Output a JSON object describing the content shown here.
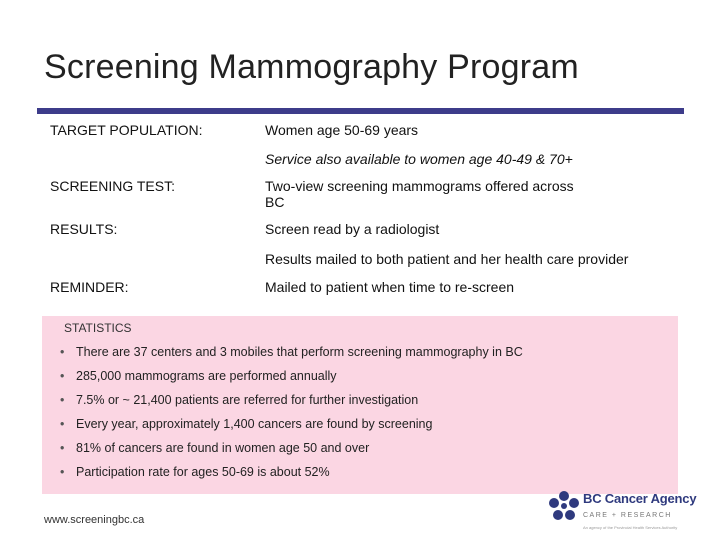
{
  "title": "Screening Mammography Program",
  "rows": {
    "target_population": {
      "label": "TARGET POPULATION:",
      "value": "Women age 50-69 years",
      "note": "Service also available to women age 40-49 & 70+"
    },
    "screening_test": {
      "label": "SCREENING TEST:",
      "value": "Two-view screening mammograms offered across BC"
    },
    "results": {
      "label": "RESULTS:",
      "value": "Screen read by a radiologist",
      "note": "Results mailed to both patient and her health care provider"
    },
    "reminder": {
      "label": "REMINDER:",
      "value": "Mailed to patient when time to re-screen"
    }
  },
  "statistics": {
    "heading": "STATISTICS",
    "bullet": "•",
    "items": [
      "There are 37 centers and 3 mobiles that perform screening mammography in BC",
      "285,000 mammograms are performed annually",
      "7.5% or ~ 21,400 patients are referred for further investigation",
      "Every year, approximately 1,400 cancers are found by screening",
      "81% of cancers are found in women age 50 and over",
      "Participation rate for ages 50-69 is about 52%"
    ]
  },
  "footer": {
    "url": "www.screeningbc.ca",
    "logo_name": "BC Cancer Agency",
    "logo_sub": "CARE + RESEARCH",
    "logo_tag": "An agency of the Provincial Health Services Authority"
  },
  "colors": {
    "accent": "#3d3c8a",
    "stats_background": "#fbd6e3",
    "logo": "#2f3a7e"
  }
}
